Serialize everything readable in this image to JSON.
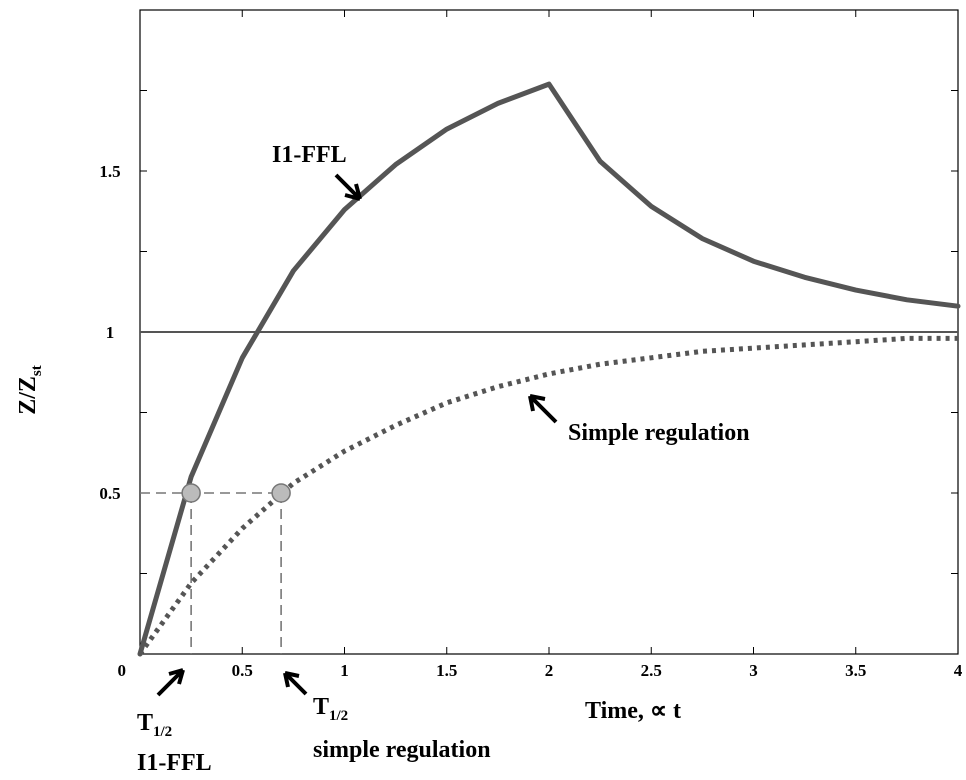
{
  "chart_data": {
    "type": "line",
    "xlabel": "Time, ∝ t",
    "ylabel": "Z/Z",
    "ylabel_sub": "st",
    "xlim": [
      0,
      4
    ],
    "ylim": [
      0,
      2
    ],
    "x_ticks": [
      0,
      0.5,
      1,
      1.5,
      2,
      2.5,
      3,
      3.5,
      4
    ],
    "x_tick_labels": [
      "0",
      "0.5",
      "1",
      "1.5",
      "2",
      "2.5",
      "3",
      "3.5",
      "4"
    ],
    "y_ticks": [
      0.5,
      1,
      1.5
    ],
    "y_tick_labels": [
      "0.5",
      "1",
      "1.5"
    ],
    "grid": false,
    "reference_line": {
      "y": 1
    },
    "series": [
      {
        "name": "I1-FFL",
        "style": "solid",
        "color": "#555555",
        "x": [
          0,
          0.25,
          0.5,
          0.75,
          1.0,
          1.25,
          1.5,
          1.75,
          2.0,
          2.25,
          2.5,
          2.75,
          3.0,
          3.25,
          3.5,
          3.75,
          4.0
        ],
        "y": [
          0,
          0.55,
          0.92,
          1.19,
          1.38,
          1.52,
          1.63,
          1.71,
          1.77,
          1.53,
          1.39,
          1.29,
          1.22,
          1.17,
          1.13,
          1.1,
          1.08
        ]
      },
      {
        "name": "Simple regulation",
        "style": "dotted",
        "color": "#555555",
        "x": [
          0,
          0.25,
          0.5,
          0.75,
          1.0,
          1.25,
          1.5,
          1.75,
          2.0,
          2.25,
          2.5,
          2.75,
          3.0,
          3.25,
          3.5,
          3.75,
          4.0
        ],
        "y": [
          0,
          0.22,
          0.39,
          0.53,
          0.63,
          0.71,
          0.78,
          0.83,
          0.87,
          0.9,
          0.92,
          0.94,
          0.95,
          0.96,
          0.97,
          0.98,
          0.98
        ]
      }
    ],
    "half_points": [
      {
        "x": 0.25,
        "y": 0.5
      },
      {
        "x": 0.69,
        "y": 0.5
      }
    ],
    "annotations": {
      "ffl_label": "I1-FFL",
      "simple_label": "Simple regulation",
      "t_half_ffl_main": "T",
      "t_half_ffl_sub": "1/2",
      "t_half_ffl_name": "I1-FFL",
      "t_half_simple_main": "T",
      "t_half_simple_sub": "1/2",
      "t_half_simple_name": "simple regulation"
    }
  }
}
